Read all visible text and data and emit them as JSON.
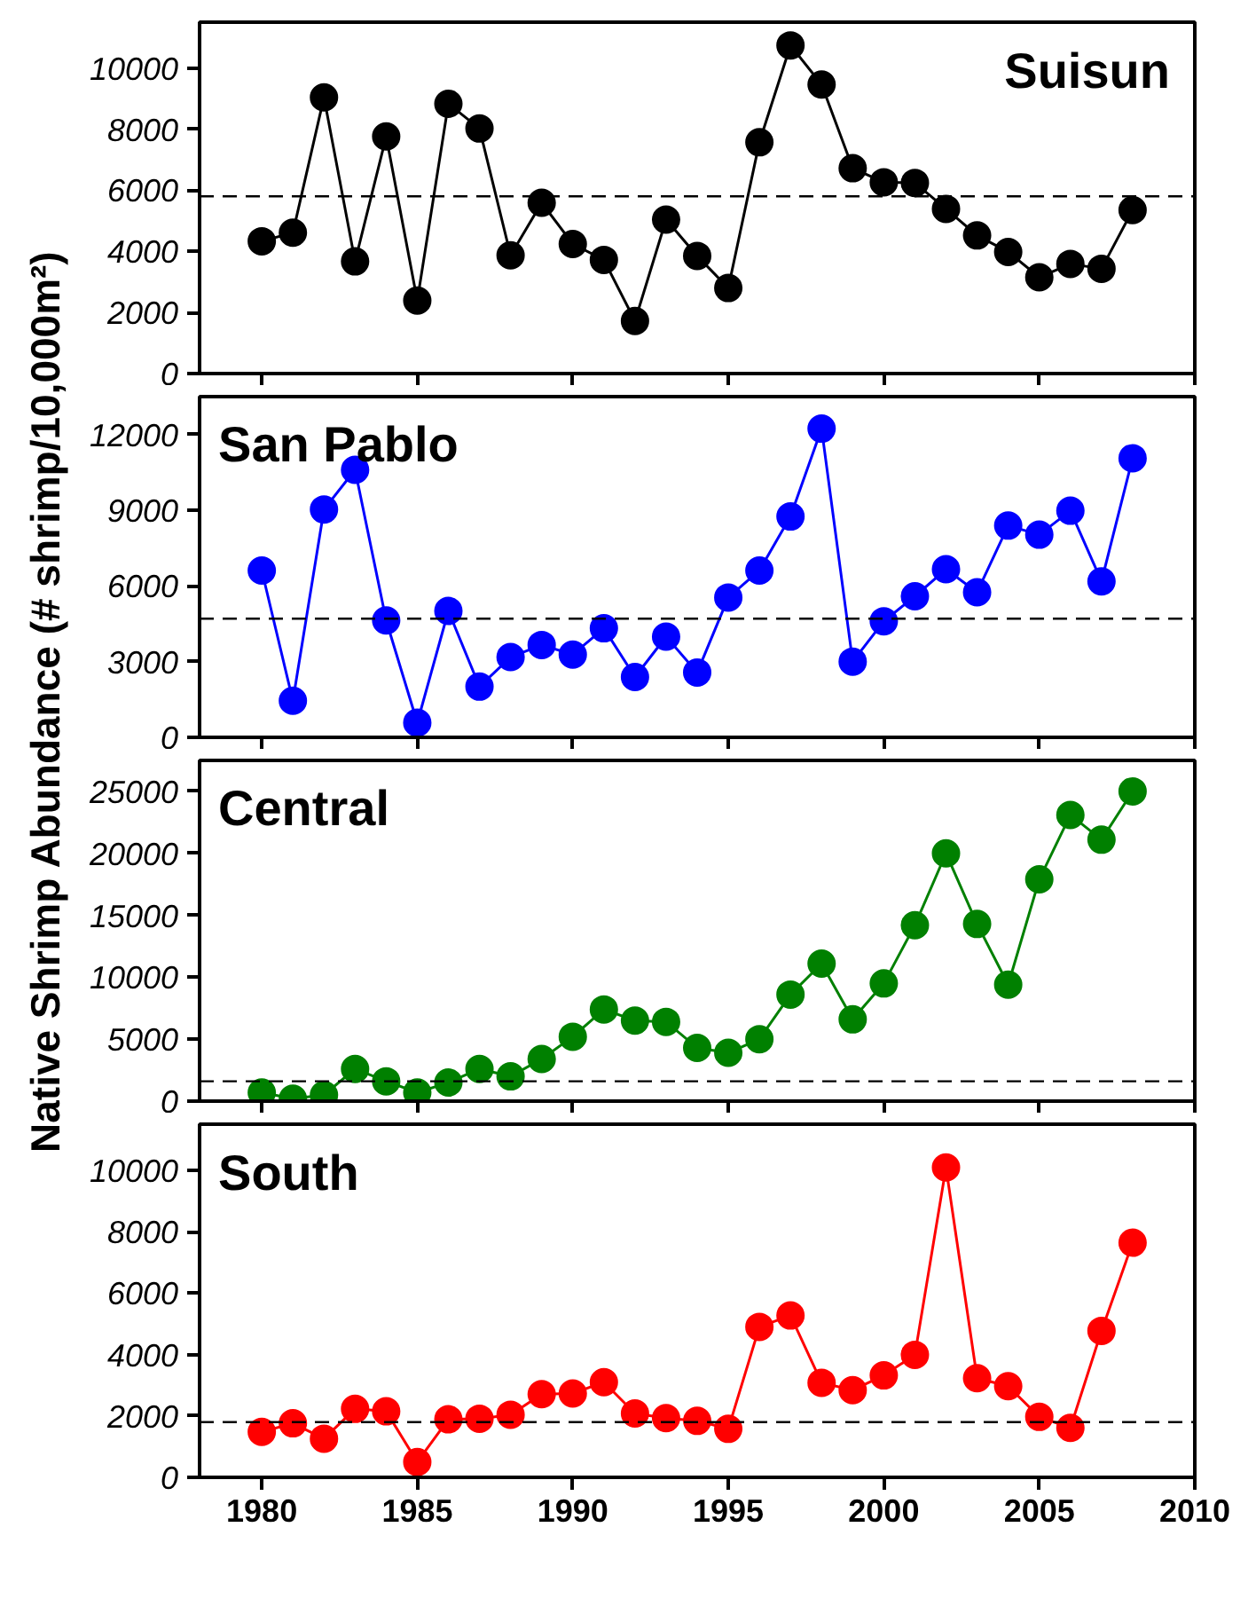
{
  "chart_data": [
    {
      "type": "line",
      "title": "Suisun",
      "ylabel": "Native Shrimp Abundance (# shrimp/10,000m²)",
      "x": [
        1980,
        1981,
        1982,
        1983,
        1984,
        1985,
        1986,
        1987,
        1988,
        1989,
        1990,
        1991,
        1992,
        1993,
        1994,
        1995,
        1996,
        1997,
        1998,
        1999,
        2000,
        2001,
        2002,
        2003,
        2004,
        2005,
        2006,
        2007,
        2008
      ],
      "series": [
        {
          "color": "#000000",
          "values": [
            4330,
            4610,
            9040,
            3670,
            7760,
            2390,
            8830,
            8020,
            3870,
            5590,
            4240,
            3720,
            1720,
            5040,
            3850,
            2800,
            7570,
            10740,
            9460,
            6720,
            6260,
            6240,
            5390,
            4520,
            3980,
            3150,
            3590,
            3430,
            5350
          ]
        }
      ],
      "xlim": [
        1978,
        2010
      ],
      "xticks": [
        1980,
        1985,
        1990,
        1995,
        2000,
        2005,
        2010
      ],
      "ylim": [
        0,
        11500
      ],
      "yticks": [
        0,
        2000,
        4000,
        6000,
        8000,
        10000
      ],
      "ref_lines": [
        {
          "axis": "y",
          "value": 5800,
          "color": "#000000",
          "line_style": "dashed"
        }
      ],
      "tick_labels": "y",
      "marker": "circle",
      "line_style": "solid",
      "grid": false
    },
    {
      "type": "line",
      "title": "San Pablo",
      "x": [
        1980,
        1981,
        1982,
        1983,
        1984,
        1985,
        1986,
        1987,
        1988,
        1989,
        1990,
        1991,
        1992,
        1993,
        1994,
        1995,
        1996,
        1997,
        1998,
        1999,
        2000,
        2001,
        2002,
        2003,
        2004,
        2005,
        2006,
        2007,
        2008
      ],
      "series": [
        {
          "color": "#0000ff",
          "values": [
            6610,
            1450,
            9030,
            10600,
            4630,
            580,
            5010,
            2010,
            3180,
            3660,
            3280,
            4320,
            2390,
            3990,
            2570,
            5540,
            6610,
            8750,
            12230,
            3000,
            4600,
            5590,
            6660,
            5750,
            8390,
            8030,
            8980,
            6180,
            11060
          ]
        }
      ],
      "xlim": [
        1978,
        2010
      ],
      "xticks": [
        1980,
        1985,
        1990,
        1995,
        2000,
        2005,
        2010
      ],
      "ylim": [
        0,
        13500
      ],
      "yticks": [
        0,
        3000,
        6000,
        9000,
        12000
      ],
      "ref_lines": [
        {
          "axis": "y",
          "value": 4700,
          "color": "#000000",
          "line_style": "dashed"
        }
      ],
      "tick_labels": "y",
      "marker": "circle",
      "line_style": "solid",
      "grid": false
    },
    {
      "type": "line",
      "title": "Central",
      "x": [
        1980,
        1981,
        1982,
        1983,
        1984,
        1985,
        1986,
        1987,
        1988,
        1989,
        1990,
        1991,
        1992,
        1993,
        1994,
        1995,
        1996,
        1997,
        1998,
        1999,
        2000,
        2001,
        2002,
        2003,
        2004,
        2005,
        2006,
        2007,
        2008
      ],
      "series": [
        {
          "color": "#008000",
          "values": [
            700,
            200,
            500,
            2600,
            1600,
            700,
            1500,
            2600,
            2000,
            3400,
            5200,
            7400,
            6500,
            6400,
            4300,
            3900,
            5000,
            8600,
            11100,
            6600,
            9500,
            14200,
            20000,
            14300,
            9400,
            17900,
            23100,
            21100,
            25000
          ]
        }
      ],
      "xlim": [
        1978,
        2010
      ],
      "xticks": [
        1980,
        1985,
        1990,
        1995,
        2000,
        2005,
        2010
      ],
      "ylim": [
        0,
        27500
      ],
      "yticks": [
        0,
        5000,
        10000,
        15000,
        20000,
        25000
      ],
      "ref_lines": [
        {
          "axis": "y",
          "value": 1600,
          "color": "#000000",
          "line_style": "dashed"
        }
      ],
      "tick_labels": "y",
      "marker": "circle",
      "line_style": "solid",
      "grid": false
    },
    {
      "type": "line",
      "title": "South",
      "x": [
        1980,
        1981,
        1982,
        1983,
        1984,
        1985,
        1986,
        1987,
        1988,
        1989,
        1990,
        1991,
        1992,
        1993,
        1994,
        1995,
        1996,
        1997,
        1998,
        1999,
        2000,
        2001,
        2002,
        2003,
        2004,
        2005,
        2006,
        2007,
        2008
      ],
      "series": [
        {
          "color": "#ff0000",
          "values": [
            1480,
            1760,
            1260,
            2230,
            2150,
            500,
            1890,
            1910,
            2040,
            2710,
            2730,
            3100,
            2080,
            1930,
            1840,
            1580,
            4900,
            5270,
            3080,
            2840,
            3320,
            3990,
            10090,
            3230,
            2970,
            1970,
            1610,
            4770,
            7640
          ]
        }
      ],
      "xlim": [
        1978,
        2010
      ],
      "xticks": [
        1980,
        1985,
        1990,
        1995,
        2000,
        2005,
        2010
      ],
      "ylim": [
        0,
        11500
      ],
      "yticks": [
        0,
        2000,
        4000,
        6000,
        8000,
        10000
      ],
      "ref_lines": [
        {
          "axis": "y",
          "value": 1800,
          "color": "#000000",
          "line_style": "dashed"
        }
      ],
      "marker": "circle",
      "line_style": "solid",
      "grid": false
    }
  ]
}
